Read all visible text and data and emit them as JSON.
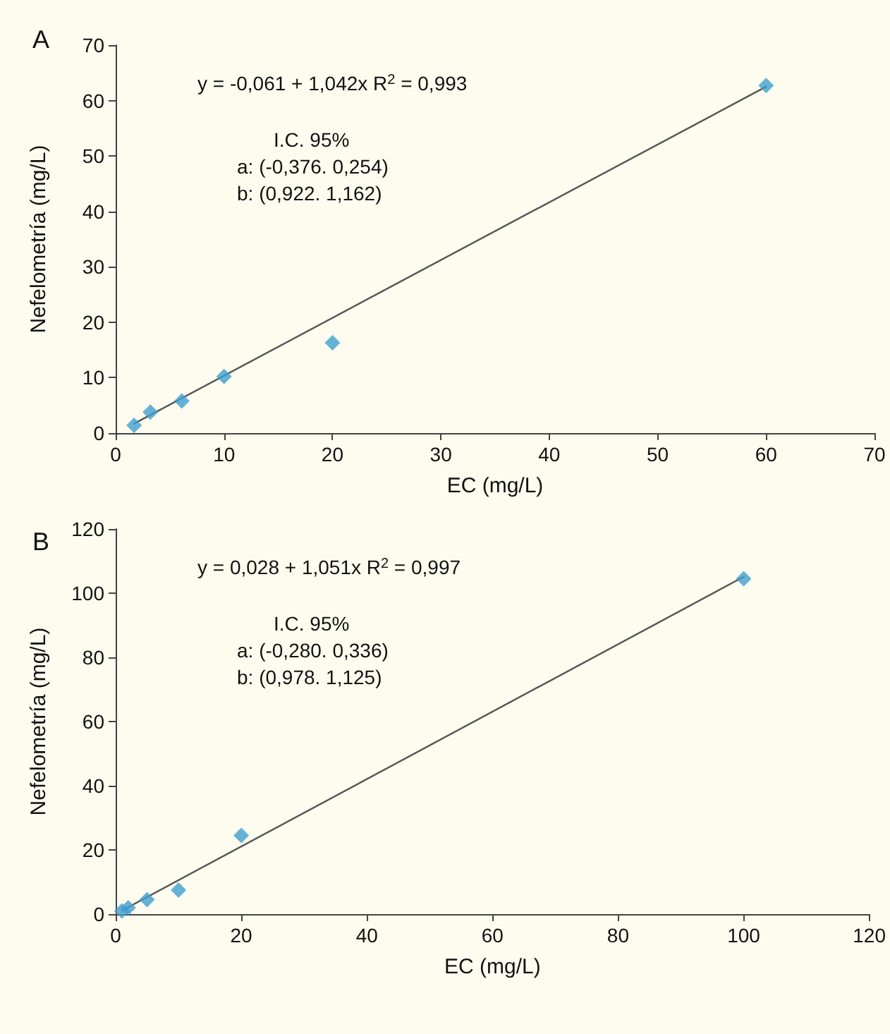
{
  "chart_data": [
    {
      "type": "scatter",
      "title": "A",
      "xlabel": "EC (mg/L)",
      "ylabel": "Nefelometría (mg/L)",
      "xlim": [
        0,
        70
      ],
      "xticks": [
        0,
        10,
        20,
        30,
        40,
        50,
        60,
        70
      ],
      "ylim": [
        0,
        70
      ],
      "yticks": [
        0,
        10,
        20,
        30,
        40,
        50,
        60,
        70
      ],
      "grid": false,
      "marker": "diamond",
      "annotations": [
        "y = -0,061 + 1,042x R$^{2}$ = 0,993",
        "I.C. 95%",
        "a: (-0,376. 0,254)",
        "b: (0,922. 1,162)"
      ],
      "series": [
        {
          "type": "scatter",
          "color": "#3d9fcf",
          "x": [
            1.7,
            3.2,
            6.1,
            10,
            20,
            60
          ],
          "values": [
            1.4,
            3.8,
            5.8,
            10.2,
            16.3,
            62.7
          ]
        },
        {
          "type": "line",
          "color": "#555555",
          "marker": "none",
          "x": [
            1.7,
            60
          ],
          "values": [
            1.7,
            62.5
          ]
        }
      ]
    },
    {
      "type": "scatter",
      "title": "B",
      "xlabel": "EC (mg/L)",
      "ylabel": "Nefelometría (mg/L)",
      "xlim": [
        0,
        120
      ],
      "xticks": [
        0,
        20,
        40,
        60,
        80,
        100,
        120
      ],
      "ylim": [
        0,
        120
      ],
      "yticks": [
        0,
        20,
        40,
        60,
        80,
        100,
        120
      ],
      "grid": false,
      "marker": "diamond",
      "annotations": [
        "y = 0,028 + 1,051x R$^{2}$ = 0,997",
        "I.C. 95%",
        "a: (-0,280. 0,336)",
        "b: (0,978. 1,125)"
      ],
      "series": [
        {
          "type": "scatter",
          "color": "#3d9fcf",
          "x": [
            1,
            2,
            5,
            10,
            20,
            100
          ],
          "values": [
            1,
            2,
            4.5,
            7.5,
            24.5,
            104.5
          ]
        },
        {
          "type": "line",
          "color": "#555555",
          "marker": "none",
          "x": [
            1,
            100
          ],
          "values": [
            1.1,
            105.1
          ]
        }
      ]
    }
  ]
}
